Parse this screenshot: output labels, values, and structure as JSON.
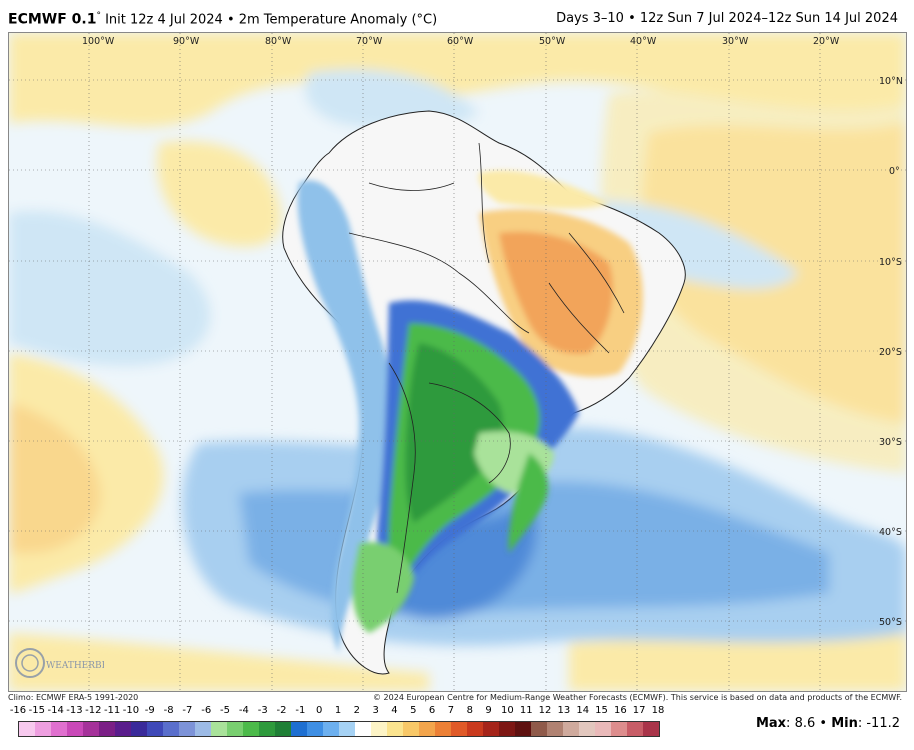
{
  "header": {
    "model": "ECMWF 0.1",
    "degree_sup": "°",
    "subtitle": "Init 12z 4 Jul 2024 • 2m Temperature Anomaly (°C)",
    "period": "Days 3–10 • 12z Sun 7 Jul 2024–12z Sun 14 Jul 2024"
  },
  "map": {
    "longitude_labels": [
      "100°W",
      "90°W",
      "80°W",
      "70°W",
      "60°W",
      "50°W",
      "40°W",
      "30°W",
      "20°W"
    ],
    "latitude_labels": [
      "10°N",
      "0°",
      "10°S",
      "20°S",
      "30°S",
      "40°S",
      "50°S"
    ],
    "colors": {
      "land_blank": "#f7f7f7",
      "ocean_neutral": "#eef6fb",
      "warm_weak": "#fbeaa8",
      "warm_mid": "#f8cf82",
      "warm_strong": "#f2a45a",
      "cool_weak": "#cfe6f5",
      "cool_mid": "#8fc1ea",
      "cool_strong": "#4a86d6",
      "cold_blue": "#2a5bd0",
      "green_light": "#8fdc8a",
      "green": "#3fbd4b",
      "green_dark": "#1f9a3a",
      "borders": "#222222"
    }
  },
  "footer": {
    "climo": "Climo: ECMWF ERA-5 1991-2020",
    "copyright": "© 2024 European Centre for Medium-Range Weather Forecasts (ECMWF). This service is based on data and products of the ECMWF."
  },
  "legend": {
    "ticks": [
      "-16",
      "-15",
      "-14",
      "-13",
      "-12",
      "-11",
      "-10",
      "-9",
      "-8",
      "-7",
      "-6",
      "-5",
      "-4",
      "-3",
      "-2",
      "-1",
      "0",
      "1",
      "2",
      "3",
      "4",
      "5",
      "6",
      "7",
      "8",
      "9",
      "10",
      "11",
      "12",
      "13",
      "14",
      "15",
      "16",
      "17",
      "18"
    ],
    "colors": [
      "#f7c9ee",
      "#ee9fe0",
      "#e070cf",
      "#c949b8",
      "#a5329a",
      "#7b1f86",
      "#5a1d8c",
      "#3a2a9a",
      "#3f49b8",
      "#5a6fcc",
      "#7d93d8",
      "#9dbbe6",
      "#a9e29a",
      "#79cf70",
      "#4cba4a",
      "#2e9a3c",
      "#1f7f36",
      "#1e6fd1",
      "#3f8fe4",
      "#6db0ef",
      "#a6d2f4",
      "#ffffff",
      "#fdf4c6",
      "#fbe48f",
      "#f8c868",
      "#f3a54c",
      "#ec8036",
      "#e05a28",
      "#c93a1e",
      "#a5241a",
      "#7d1714",
      "#5e1110",
      "#8f5a4a",
      "#b08272",
      "#cfaa9d",
      "#e2c7be",
      "#e9b9b9",
      "#dd8d8d",
      "#c85d67",
      "#a93449"
    ],
    "max_label": "Max",
    "max_value": "8.6",
    "min_label": "Min",
    "min_value": "-11.2"
  },
  "logo": {
    "text": "WEATHERBELL"
  }
}
